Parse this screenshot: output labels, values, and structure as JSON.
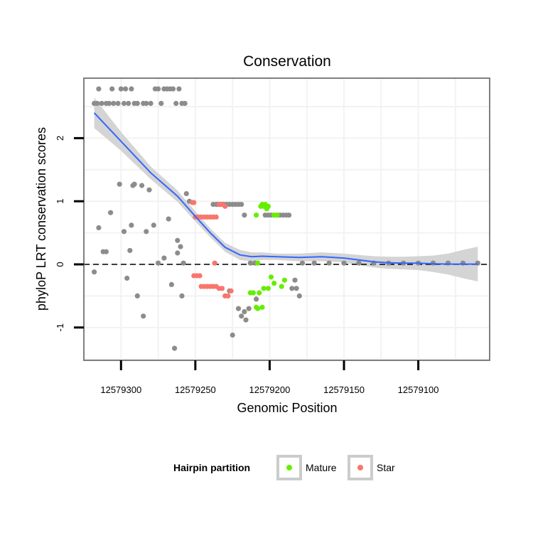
{
  "chart_data": {
    "type": "scatter",
    "title": "Conservation",
    "xlabel": "Genomic Position",
    "ylabel": "phyloP LRT conservation scores",
    "x_reversed": true,
    "xlim": [
      12579325,
      12579052
    ],
    "ylim": [
      -1.52,
      2.95
    ],
    "xticks": [
      12579300,
      12579250,
      12579200,
      12579150,
      12579100
    ],
    "yticks": [
      -1,
      0,
      1,
      2
    ],
    "grid": true,
    "reference_line": {
      "y": 0,
      "style": "dashed",
      "color": "#000000"
    },
    "legend": {
      "title": "Hairpin partition",
      "position": "bottom",
      "items": [
        {
          "label": "Mature",
          "color": "#66ee00"
        },
        {
          "label": "Star",
          "color": "#f8766d"
        }
      ]
    },
    "colors": {
      "Other": "#8c8c8c",
      "Mature": "#66ee00",
      "Star": "#f8766d",
      "smooth": "#3366ff",
      "ribbon": "#d2d2d2",
      "panel_border": "#7f7f7f",
      "grid": "#f2f2f2"
    },
    "series": [
      {
        "name": "Other",
        "points": [
          [
            12579318,
            2.55
          ],
          [
            12579316,
            2.55
          ],
          [
            12579315,
            2.78
          ],
          [
            12579313,
            2.55
          ],
          [
            12579310,
            2.55
          ],
          [
            12579308,
            2.55
          ],
          [
            12579306,
            2.78
          ],
          [
            12579305,
            2.55
          ],
          [
            12579302,
            2.55
          ],
          [
            12579300,
            2.78
          ],
          [
            12579298,
            2.55
          ],
          [
            12579297,
            2.78
          ],
          [
            12579295,
            2.55
          ],
          [
            12579293,
            2.78
          ],
          [
            12579291,
            2.55
          ],
          [
            12579289,
            2.55
          ],
          [
            12579285,
            2.55
          ],
          [
            12579283,
            2.55
          ],
          [
            12579280,
            2.55
          ],
          [
            12579277,
            2.78
          ],
          [
            12579275,
            2.78
          ],
          [
            12579273,
            2.55
          ],
          [
            12579271,
            2.78
          ],
          [
            12579269,
            2.78
          ],
          [
            12579267,
            2.78
          ],
          [
            12579265,
            2.78
          ],
          [
            12579263,
            2.55
          ],
          [
            12579261,
            2.78
          ],
          [
            12579259,
            2.55
          ],
          [
            12579257,
            2.55
          ],
          [
            12579318,
            -0.12
          ],
          [
            12579315,
            0.58
          ],
          [
            12579312,
            0.2
          ],
          [
            12579310,
            0.2
          ],
          [
            12579307,
            0.82
          ],
          [
            12579301,
            1.27
          ],
          [
            12579298,
            0.52
          ],
          [
            12579296,
            -0.22
          ],
          [
            12579294,
            0.22
          ],
          [
            12579293,
            0.62
          ],
          [
            12579292,
            1.25
          ],
          [
            12579291,
            1.27
          ],
          [
            12579289,
            -0.5
          ],
          [
            12579286,
            1.25
          ],
          [
            12579285,
            -0.82
          ],
          [
            12579283,
            0.52
          ],
          [
            12579281,
            1.18
          ],
          [
            12579278,
            0.62
          ],
          [
            12579275,
            0.02
          ],
          [
            12579271,
            0.1
          ],
          [
            12579268,
            0.72
          ],
          [
            12579266,
            -0.32
          ],
          [
            12579264,
            -1.33
          ],
          [
            12579262,
            0.38
          ],
          [
            12579262,
            0.18
          ],
          [
            12579260,
            0.28
          ],
          [
            12579259,
            -0.5
          ],
          [
            12579258,
            0.02
          ],
          [
            12579256,
            1.12
          ],
          [
            12579254,
            1.0
          ],
          [
            12579238,
            0.95
          ],
          [
            12579236,
            0.95
          ],
          [
            12579235,
            0.95
          ],
          [
            12579233,
            0.95
          ],
          [
            12579231,
            0.95
          ],
          [
            12579229,
            0.95
          ],
          [
            12579227,
            0.95
          ],
          [
            12579225,
            0.95
          ],
          [
            12579223,
            0.95
          ],
          [
            12579221,
            0.95
          ],
          [
            12579219,
            0.95
          ],
          [
            12579217,
            0.78
          ],
          [
            12579227,
            -0.42
          ],
          [
            12579225,
            -1.12
          ],
          [
            12579221,
            -0.7
          ],
          [
            12579219,
            -0.82
          ],
          [
            12579217,
            -0.75
          ],
          [
            12579216,
            -0.88
          ],
          [
            12579214,
            -0.7
          ],
          [
            12579213,
            0.02
          ],
          [
            12579210,
            0.02
          ],
          [
            12579209,
            -0.55
          ],
          [
            12579203,
            0.78
          ],
          [
            12579201,
            0.78
          ],
          [
            12579199,
            0.78
          ],
          [
            12579197,
            0.78
          ],
          [
            12579195,
            0.78
          ],
          [
            12579193,
            0.78
          ],
          [
            12579191,
            0.78
          ],
          [
            12579189,
            0.78
          ],
          [
            12579187,
            0.78
          ],
          [
            12579185,
            -0.38
          ],
          [
            12579183,
            -0.25
          ],
          [
            12579182,
            -0.38
          ],
          [
            12579180,
            -0.5
          ],
          [
            12579178,
            0.02
          ],
          [
            12579170,
            0.02
          ],
          [
            12579160,
            0.02
          ],
          [
            12579150,
            0.02
          ],
          [
            12579140,
            0.02
          ],
          [
            12579130,
            0.02
          ],
          [
            12579120,
            0.02
          ],
          [
            12579110,
            0.02
          ],
          [
            12579100,
            0.02
          ],
          [
            12579090,
            0.02
          ],
          [
            12579080,
            0.02
          ],
          [
            12579070,
            0.02
          ],
          [
            12579060,
            0.02
          ]
        ]
      },
      {
        "name": "Star",
        "points": [
          [
            12579252,
            0.98
          ],
          [
            12579251,
            0.98
          ],
          [
            12579250,
            0.75
          ],
          [
            12579248,
            0.75
          ],
          [
            12579246,
            0.75
          ],
          [
            12579244,
            0.75
          ],
          [
            12579242,
            0.75
          ],
          [
            12579240,
            0.75
          ],
          [
            12579238,
            0.75
          ],
          [
            12579236,
            0.75
          ],
          [
            12579234,
            0.95
          ],
          [
            12579232,
            0.95
          ],
          [
            12579230,
            0.92
          ],
          [
            12579251,
            -0.18
          ],
          [
            12579249,
            -0.18
          ],
          [
            12579247,
            -0.18
          ],
          [
            12579246,
            -0.35
          ],
          [
            12579244,
            -0.35
          ],
          [
            12579242,
            -0.35
          ],
          [
            12579240,
            -0.35
          ],
          [
            12579238,
            -0.35
          ],
          [
            12579236,
            -0.35
          ],
          [
            12579234,
            -0.38
          ],
          [
            12579232,
            -0.38
          ],
          [
            12579230,
            -0.5
          ],
          [
            12579228,
            -0.5
          ],
          [
            12579226,
            -0.42
          ],
          [
            12579237,
            0.02
          ]
        ]
      },
      {
        "name": "Mature",
        "points": [
          [
            12579206,
            0.92
          ],
          [
            12579205,
            0.95
          ],
          [
            12579204,
            0.92
          ],
          [
            12579203,
            0.95
          ],
          [
            12579202,
            0.88
          ],
          [
            12579201,
            0.92
          ],
          [
            12579209,
            0.78
          ],
          [
            12579197,
            0.78
          ],
          [
            12579195,
            0.78
          ],
          [
            12579213,
            -0.45
          ],
          [
            12579211,
            -0.45
          ],
          [
            12579209,
            -0.68
          ],
          [
            12579208,
            -0.7
          ],
          [
            12579207,
            -0.45
          ],
          [
            12579205,
            -0.68
          ],
          [
            12579204,
            -0.38
          ],
          [
            12579201,
            -0.38
          ],
          [
            12579199,
            -0.2
          ],
          [
            12579197,
            -0.3
          ],
          [
            12579192,
            -0.35
          ],
          [
            12579190,
            -0.25
          ],
          [
            12579208,
            0.02
          ]
        ]
      }
    ],
    "smooth": {
      "x": [
        12579318,
        12579300,
        12579280,
        12579262,
        12579250,
        12579240,
        12579230,
        12579220,
        12579212,
        12579205,
        12579195,
        12579180,
        12579165,
        12579150,
        12579140,
        12579130,
        12579120,
        12579110,
        12579100,
        12579090,
        12579080,
        12579070,
        12579060
      ],
      "y": [
        2.4,
        1.95,
        1.45,
        1.08,
        0.76,
        0.5,
        0.27,
        0.15,
        0.12,
        0.13,
        0.12,
        0.11,
        0.12,
        0.1,
        0.07,
        0.04,
        0.025,
        0.02,
        0.02,
        0.01,
        0.005,
        0.005,
        0.005
      ],
      "lower": [
        2.16,
        1.8,
        1.35,
        0.99,
        0.68,
        0.43,
        0.2,
        0.07,
        0.05,
        0.07,
        0.07,
        0.05,
        0.05,
        0.03,
        -0.01,
        -0.05,
        -0.07,
        -0.08,
        -0.09,
        -0.12,
        -0.16,
        -0.22,
        -0.27
      ],
      "upper": [
        2.64,
        2.1,
        1.55,
        1.17,
        0.84,
        0.57,
        0.34,
        0.23,
        0.19,
        0.19,
        0.17,
        0.17,
        0.19,
        0.17,
        0.15,
        0.13,
        0.12,
        0.12,
        0.13,
        0.14,
        0.17,
        0.23,
        0.28
      ]
    }
  }
}
